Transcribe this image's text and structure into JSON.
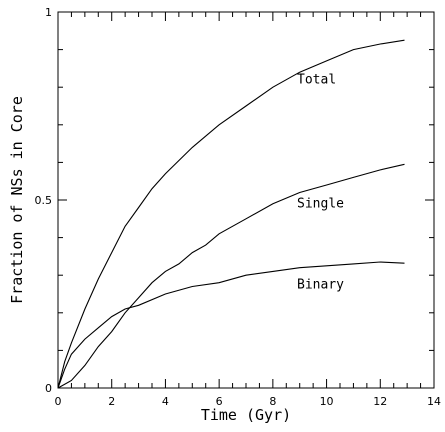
{
  "chart_data": {
    "type": "line",
    "xlabel": "Time (Gyr)",
    "ylabel": "Fraction of NSs in Core",
    "xlim": [
      0,
      14
    ],
    "ylim": [
      0,
      1
    ],
    "x_major_ticks": [
      0,
      2,
      4,
      6,
      8,
      10,
      12,
      14
    ],
    "x_minor_ticks": [
      0.5,
      1,
      1.5,
      2.5,
      3,
      3.5,
      4.5,
      5,
      5.5,
      6.5,
      7,
      7.5,
      8.5,
      9,
      9.5,
      10.5,
      11,
      11.5,
      12.5,
      13,
      13.5
    ],
    "y_major_ticks": [
      0,
      0.5,
      1
    ],
    "y_tick_labels": [
      "0",
      "0.5",
      "1"
    ],
    "y_minor_ticks": [
      0.1,
      0.2,
      0.3,
      0.4,
      0.6,
      0.7,
      0.8,
      0.9
    ],
    "grid": false,
    "legend": "none",
    "series": [
      {
        "name": "Total",
        "color": "#000000",
        "x": [
          0,
          0.25,
          0.5,
          1,
          1.5,
          2,
          2.5,
          3,
          3.5,
          4,
          5,
          6,
          7,
          8,
          9,
          10,
          11,
          12,
          12.9
        ],
        "y": [
          0,
          0.07,
          0.12,
          0.21,
          0.29,
          0.36,
          0.43,
          0.48,
          0.53,
          0.57,
          0.64,
          0.7,
          0.75,
          0.8,
          0.84,
          0.87,
          0.9,
          0.915,
          0.925
        ]
      },
      {
        "name": "Single",
        "color": "#000000",
        "x": [
          0,
          0.5,
          1,
          1.5,
          2,
          2.5,
          3,
          3.5,
          4,
          4.5,
          5,
          5.5,
          6,
          7,
          8,
          9,
          10,
          11,
          12,
          12.9
        ],
        "y": [
          0,
          0.02,
          0.06,
          0.11,
          0.15,
          0.2,
          0.24,
          0.28,
          0.31,
          0.33,
          0.36,
          0.38,
          0.41,
          0.45,
          0.49,
          0.52,
          0.54,
          0.56,
          0.58,
          0.595
        ]
      },
      {
        "name": "Binary",
        "color": "#000000",
        "x": [
          0,
          0.25,
          0.5,
          1,
          1.5,
          2,
          2.5,
          3,
          4,
          5,
          6,
          7,
          8,
          9,
          10,
          11,
          12,
          12.9
        ],
        "y": [
          0,
          0.05,
          0.09,
          0.13,
          0.16,
          0.19,
          0.21,
          0.22,
          0.25,
          0.27,
          0.28,
          0.3,
          0.31,
          0.32,
          0.325,
          0.33,
          0.335,
          0.332
        ]
      }
    ],
    "annotations": [
      {
        "text": "Total",
        "x": 8.9,
        "y": 0.81
      },
      {
        "text": "Single",
        "x": 8.9,
        "y": 0.48
      },
      {
        "text": "Binary",
        "x": 8.9,
        "y": 0.265
      }
    ]
  }
}
